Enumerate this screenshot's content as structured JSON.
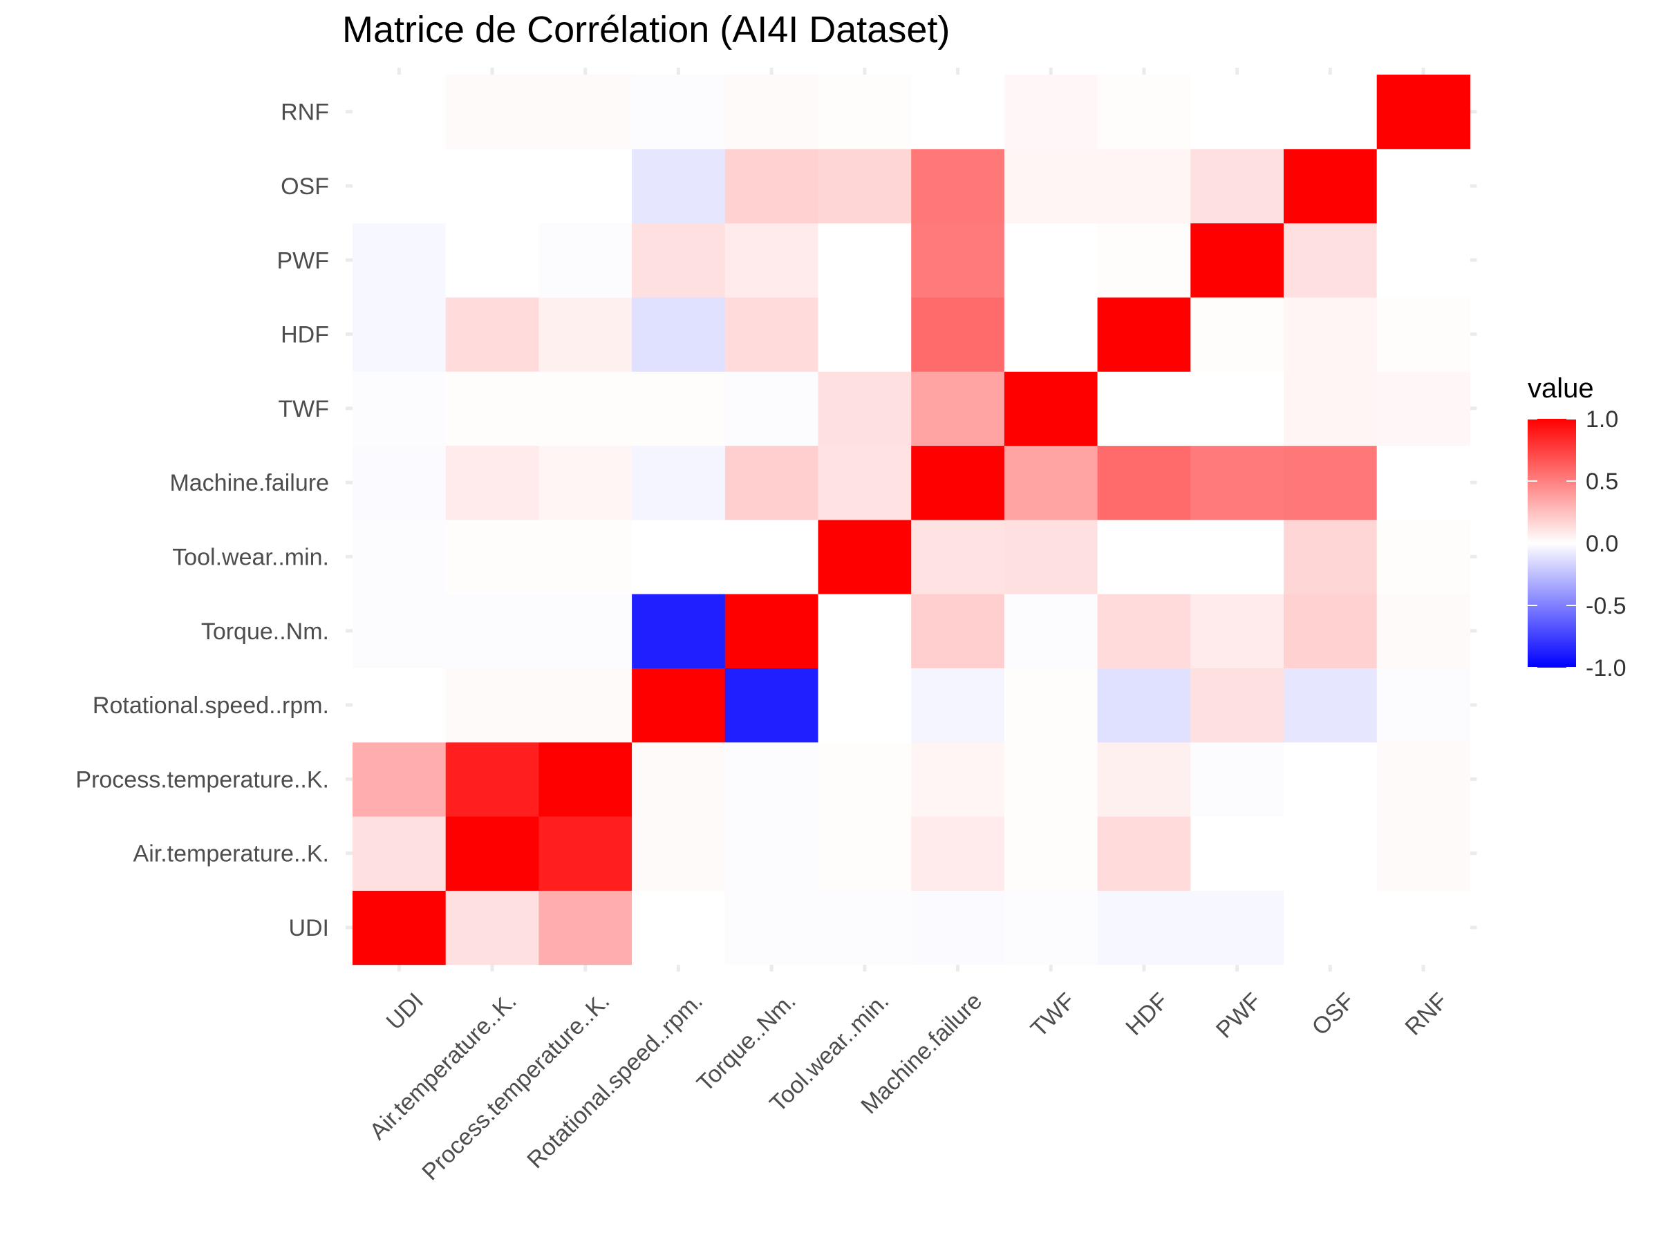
{
  "chart_data": {
    "type": "heatmap",
    "title": "Matrice de Corrélation (AI4I Dataset)",
    "variables": [
      "UDI",
      "Air.temperature..K.",
      "Process.temperature..K.",
      "Rotational.speed..rpm.",
      "Torque..Nm.",
      "Tool.wear..min.",
      "Machine.failure",
      "TWF",
      "HDF",
      "PWF",
      "OSF",
      "RNF"
    ],
    "x_categories": [
      "UDI",
      "Air.temperature..K.",
      "Process.temperature..K.",
      "Rotational.speed..rpm.",
      "Torque..Nm.",
      "Tool.wear..min.",
      "Machine.failure",
      "TWF",
      "HDF",
      "PWF",
      "OSF",
      "RNF"
    ],
    "y_categories": [
      "UDI",
      "Air.temperature..K.",
      "Process.temperature..K.",
      "Rotational.speed..rpm.",
      "Torque..Nm.",
      "Tool.wear..min.",
      "Machine.failure",
      "TWF",
      "HDF",
      "PWF",
      "OSF",
      "RNF"
    ],
    "matrix": [
      [
        1.0,
        0.12,
        0.32,
        0.0,
        -0.01,
        -0.01,
        -0.02,
        -0.01,
        -0.03,
        -0.03,
        0.0,
        0.0
      ],
      [
        0.12,
        1.0,
        0.88,
        0.02,
        -0.01,
        0.01,
        0.08,
        0.01,
        0.14,
        0.0,
        0.0,
        0.02
      ],
      [
        0.32,
        0.88,
        1.0,
        0.02,
        -0.01,
        0.01,
        0.04,
        0.01,
        0.06,
        -0.01,
        0.0,
        0.02
      ],
      [
        0.0,
        0.02,
        0.02,
        1.0,
        -0.88,
        0.0,
        -0.04,
        0.01,
        -0.12,
        0.12,
        -0.1,
        -0.01
      ],
      [
        -0.01,
        -0.01,
        -0.01,
        -0.88,
        1.0,
        -0.0,
        0.19,
        -0.01,
        0.14,
        0.08,
        0.18,
        0.02
      ],
      [
        -0.01,
        0.01,
        0.01,
        0.0,
        -0.0,
        1.0,
        0.11,
        0.12,
        -0.0,
        -0.0,
        0.16,
        0.01
      ],
      [
        -0.02,
        0.08,
        0.04,
        -0.04,
        0.19,
        0.11,
        1.0,
        0.36,
        0.58,
        0.52,
        0.53,
        0.0
      ],
      [
        -0.01,
        0.01,
        0.01,
        0.01,
        -0.01,
        0.12,
        0.36,
        1.0,
        -0.0,
        -0.0,
        0.04,
        0.03
      ],
      [
        -0.03,
        0.14,
        0.06,
        -0.12,
        0.14,
        -0.0,
        0.58,
        -0.0,
        1.0,
        0.01,
        0.04,
        0.01
      ],
      [
        -0.03,
        0.0,
        -0.01,
        0.12,
        0.08,
        -0.0,
        0.52,
        -0.0,
        0.01,
        1.0,
        0.12,
        0.0
      ],
      [
        0.0,
        0.0,
        0.0,
        -0.1,
        0.18,
        0.16,
        0.53,
        0.04,
        0.04,
        0.12,
        1.0,
        0.0
      ],
      [
        0.0,
        0.02,
        0.02,
        -0.01,
        0.02,
        0.01,
        0.0,
        0.03,
        0.01,
        0.0,
        0.0,
        1.0
      ]
    ],
    "color_scale": {
      "low": "#0000ff",
      "mid": "#ffffff",
      "high": "#ff0000",
      "limits": [
        -1,
        1
      ],
      "title": "value",
      "breaks": [
        "1.0",
        "0.5",
        "0.0",
        "-0.5",
        "-1.0"
      ],
      "break_values": [
        1.0,
        0.5,
        0.0,
        -0.5,
        -1.0
      ]
    },
    "grid": true,
    "legend_position": "right"
  }
}
